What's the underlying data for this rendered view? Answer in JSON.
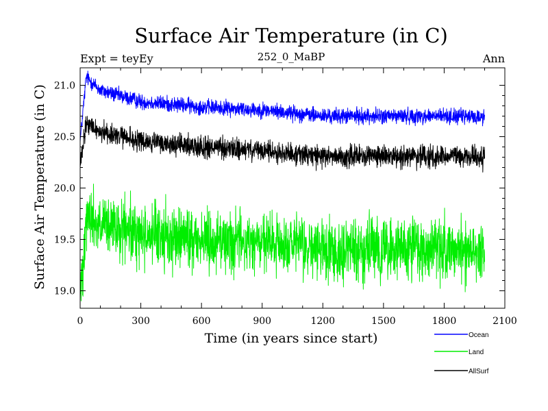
{
  "chart_data": {
    "type": "line",
    "title": "Surface Air Temperature (in C)",
    "subtitle_left": "Expt = teyEy",
    "subtitle_center": "252_0_MaBP",
    "subtitle_right": "Ann",
    "xlabel": "Time (in years since start)",
    "ylabel": "Surface Air Temperature (in C)",
    "xlim": [
      0,
      2100
    ],
    "ylim": [
      18.83,
      21.17
    ],
    "x_ticks": [
      0,
      300,
      600,
      900,
      1200,
      1500,
      1800,
      2100
    ],
    "x_tick_labels": [
      "0",
      "300",
      "600",
      "900",
      "1200",
      "1500",
      "1800",
      "2100"
    ],
    "y_ticks": [
      19.0,
      19.5,
      20.0,
      20.5,
      21.0
    ],
    "y_tick_labels": [
      "19.0",
      "19.5",
      "20.0",
      "20.5",
      "21.0"
    ],
    "series": [
      {
        "name": "Ocean",
        "color": "#0000ff",
        "start": 20.45,
        "peak": 21.08,
        "peak_year": 30,
        "trend": [
          [
            0,
            20.45
          ],
          [
            30,
            21.08
          ],
          [
            100,
            20.95
          ],
          [
            300,
            20.84
          ],
          [
            600,
            20.79
          ],
          [
            900,
            20.76
          ],
          [
            1200,
            20.7
          ],
          [
            1500,
            20.7
          ],
          [
            1800,
            20.7
          ],
          [
            2000,
            20.69
          ]
        ],
        "noise_amplitude": 0.05
      },
      {
        "name": "Land",
        "color": "#00ee00",
        "start": 18.9,
        "peak": 19.75,
        "peak_year": 30,
        "trend": [
          [
            0,
            18.9
          ],
          [
            30,
            19.75
          ],
          [
            100,
            19.62
          ],
          [
            300,
            19.55
          ],
          [
            600,
            19.5
          ],
          [
            900,
            19.46
          ],
          [
            1200,
            19.4
          ],
          [
            1500,
            19.4
          ],
          [
            1800,
            19.4
          ],
          [
            2000,
            19.4
          ]
        ],
        "noise_amplitude": 0.2
      },
      {
        "name": "AllSurf",
        "color": "#000000",
        "start": 20.2,
        "peak": 20.62,
        "peak_year": 30,
        "trend": [
          [
            0,
            20.2
          ],
          [
            30,
            20.62
          ],
          [
            100,
            20.55
          ],
          [
            300,
            20.45
          ],
          [
            600,
            20.4
          ],
          [
            900,
            20.36
          ],
          [
            1200,
            20.31
          ],
          [
            1500,
            20.31
          ],
          [
            1800,
            20.31
          ],
          [
            2000,
            20.3
          ]
        ],
        "noise_amplitude": 0.07
      }
    ],
    "x_end": 2000,
    "legend_placement": "bottom-right"
  }
}
